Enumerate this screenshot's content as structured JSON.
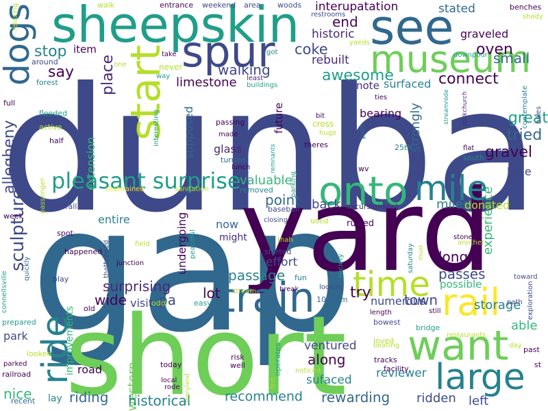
{
  "cloud": {
    "palette": [
      "#440154",
      "#482878",
      "#3e4989",
      "#31688e",
      "#26828e",
      "#1f9e89",
      "#35b779",
      "#6ece58",
      "#b5de2b",
      "#fde725"
    ],
    "words": [
      {
        "text": "dunbar",
        "color": "#3e4989"
      },
      {
        "text": "gap",
        "color": "#31688e"
      },
      {
        "text": "yard",
        "color": "#440154"
      },
      {
        "text": "short",
        "color": "#6ece58"
      },
      {
        "text": "sheepskin",
        "color": "#1f9e89"
      },
      {
        "text": "spur",
        "color": "#3e4989"
      },
      {
        "text": "see",
        "color": "#31688e"
      },
      {
        "text": "museum",
        "color": "#6ece58"
      },
      {
        "text": "start",
        "color": "#b5de2b"
      },
      {
        "text": "dogs",
        "color": "#31688e"
      },
      {
        "text": "onto",
        "color": "#35b779"
      },
      {
        "text": "mile",
        "color": "#26828e"
      },
      {
        "text": "train",
        "color": "#31688e"
      },
      {
        "text": "rail",
        "color": "#fde725"
      },
      {
        "text": "time",
        "color": "#b5de2b"
      },
      {
        "text": "want",
        "color": "#6ece58"
      },
      {
        "text": "large",
        "color": "#26828e"
      },
      {
        "text": "ride",
        "color": "#26828e"
      },
      {
        "text": "pleasant surprise",
        "color": "#1f9e89"
      },
      {
        "text": "allegheny",
        "color": "#3e4989"
      },
      {
        "text": "sculpture",
        "color": "#3e4989"
      },
      {
        "text": "stop",
        "color": "#26828e"
      },
      {
        "text": "item",
        "color": "#440154"
      },
      {
        "text": "say",
        "color": "#440154"
      },
      {
        "text": "place",
        "color": "#482878"
      },
      {
        "text": "walking",
        "color": "#3e4989"
      },
      {
        "text": "limestone",
        "color": "#440154"
      },
      {
        "text": "coke",
        "color": "#3e4989"
      },
      {
        "text": "rebuilt",
        "color": "#482878"
      },
      {
        "text": "awesome",
        "color": "#1f9e89"
      },
      {
        "text": "note",
        "color": "#482878"
      },
      {
        "text": "surfaced",
        "color": "#26828e"
      },
      {
        "text": "connect",
        "color": "#440154"
      },
      {
        "text": "oven",
        "color": "#440154"
      },
      {
        "text": "small",
        "color": "#31688e"
      },
      {
        "text": "end",
        "color": "#440154"
      },
      {
        "text": "historic",
        "color": "#482878"
      },
      {
        "text": "interupatation",
        "color": "#440154"
      },
      {
        "text": "stated",
        "color": "#31688e"
      },
      {
        "text": "graveled",
        "color": "#440154"
      },
      {
        "text": "great",
        "color": "#1f9e89"
      },
      {
        "text": "tried",
        "color": "#31688e"
      },
      {
        "text": "gravel",
        "color": "#440154"
      },
      {
        "text": "strongly",
        "color": "#31688e"
      },
      {
        "text": "experience",
        "color": "#35b779"
      },
      {
        "text": "bearing",
        "color": "#440154"
      },
      {
        "text": "supposed",
        "color": "#31688e"
      },
      {
        "text": "extension",
        "color": "#35b779"
      },
      {
        "text": "glass",
        "color": "#482878"
      },
      {
        "text": "valuable",
        "color": "#35b779"
      },
      {
        "text": "point",
        "color": "#31688e"
      },
      {
        "text": "back",
        "color": "#3e4989"
      },
      {
        "text": "miles",
        "color": "#26828e"
      },
      {
        "text": "donated",
        "color": "#b5de2b"
      },
      {
        "text": "little",
        "color": "#3e4989"
      },
      {
        "text": "future",
        "color": "#440154"
      },
      {
        "text": "entire",
        "color": "#26828e"
      },
      {
        "text": "undergoing",
        "color": "#440154"
      },
      {
        "text": "now",
        "color": "#31688e"
      },
      {
        "text": "might",
        "color": "#482878"
      },
      {
        "text": "effort",
        "color": "#3e4989"
      },
      {
        "text": "passage",
        "color": "#26828e"
      },
      {
        "text": "long",
        "color": "#440154"
      },
      {
        "text": "passes",
        "color": "#3e4989"
      },
      {
        "text": "possible",
        "color": "#35b779"
      },
      {
        "text": "surprising",
        "color": "#482878"
      },
      {
        "text": "visit",
        "color": "#3e4989"
      },
      {
        "text": "pa",
        "color": "#3e4989"
      },
      {
        "text": "wide",
        "color": "#440154"
      },
      {
        "text": "lot",
        "color": "#440154"
      },
      {
        "text": "try",
        "color": "#440154"
      },
      {
        "text": "town",
        "color": "#3e4989"
      },
      {
        "text": "numerous",
        "color": "#3e4989"
      },
      {
        "text": "storage",
        "color": "#26828e"
      },
      {
        "text": "able",
        "color": "#35b779"
      },
      {
        "text": "park",
        "color": "#3e4989"
      },
      {
        "text": "western",
        "color": "#6ece58"
      },
      {
        "text": "road",
        "color": "#440154"
      },
      {
        "text": "along",
        "color": "#440154"
      },
      {
        "text": "ventured",
        "color": "#3e4989"
      },
      {
        "text": "sufaced",
        "color": "#26828e"
      },
      {
        "text": "reviewer",
        "color": "#26828e"
      },
      {
        "text": "ridden",
        "color": "#3e4989"
      },
      {
        "text": "left",
        "color": "#3e4989"
      },
      {
        "text": "nice",
        "color": "#35b779"
      },
      {
        "text": "riding",
        "color": "#31688e"
      },
      {
        "text": "historical",
        "color": "#26828e"
      },
      {
        "text": "recommend",
        "color": "#26828e"
      },
      {
        "text": "rewarding",
        "color": "#31688e"
      },
      {
        "text": "improvements",
        "color": "#35b779"
      },
      {
        "text": "walk",
        "color": "#b5de2b"
      },
      {
        "text": "entrance",
        "color": "#440154"
      },
      {
        "text": "weekend",
        "color": "#3e4989"
      },
      {
        "text": "area",
        "color": "#3e4989"
      },
      {
        "text": "woods",
        "color": "#3e4989"
      },
      {
        "text": "restrooms",
        "color": "#3e4989"
      },
      {
        "text": "benches",
        "color": "#440154"
      },
      {
        "text": "shady",
        "color": "#b5de2b"
      },
      {
        "text": "relaxing",
        "color": "#b5de2b"
      },
      {
        "text": "around",
        "color": "#3e4989"
      },
      {
        "text": "forest",
        "color": "#26828e"
      },
      {
        "text": "one",
        "color": "#b5de2b"
      },
      {
        "text": "take",
        "color": "#440154"
      },
      {
        "text": "way",
        "color": "#1f9e89"
      },
      {
        "text": "got",
        "color": "#26828e"
      },
      {
        "text": "yaeds",
        "color": "#b5de2b"
      },
      {
        "text": "downpour",
        "color": "#1f9e89"
      },
      {
        "text": "least",
        "color": "#482878"
      },
      {
        "text": "buildings",
        "color": "#1f9e89"
      },
      {
        "text": "never",
        "color": "#b5de2b"
      },
      {
        "text": "contemplate",
        "color": "#26828e"
      },
      {
        "text": "bikes",
        "color": "#3e4989"
      },
      {
        "text": "full",
        "color": "#440154"
      },
      {
        "text": "flooded",
        "color": "#1f9e89"
      },
      {
        "text": "active",
        "color": "#b5de2b"
      },
      {
        "text": "half",
        "color": "#440154"
      },
      {
        "text": "interesting",
        "color": "#1f9e89"
      },
      {
        "text": "passing",
        "color": "#440154"
      },
      {
        "text": "made",
        "color": "#440154"
      },
      {
        "text": "turned",
        "color": "#31688e"
      },
      {
        "text": "lunch",
        "color": "#440154"
      },
      {
        "text": "removed",
        "color": "#26828e"
      },
      {
        "text": "maintained",
        "color": "#fde725"
      },
      {
        "text": "overall",
        "color": "#3e4989"
      },
      {
        "text": "sanitation",
        "color": "#b5de2b"
      },
      {
        "text": "bit",
        "color": "#440154"
      },
      {
        "text": "cross",
        "color": "#b5de2b"
      },
      {
        "text": "huge",
        "color": "#b5de2b"
      },
      {
        "text": "theres",
        "color": "#440154"
      },
      {
        "text": "part",
        "color": "#31688e"
      },
      {
        "text": "ties",
        "color": "#440154"
      },
      {
        "text": "streamrode",
        "color": "#1f9e89"
      },
      {
        "text": "parkchurch",
        "color": "#482878"
      },
      {
        "text": "parking",
        "color": "#1f9e89"
      },
      {
        "text": "25th",
        "color": "#26828e"
      },
      {
        "text": "flat",
        "color": "#440154"
      },
      {
        "text": "south",
        "color": "#26828e"
      },
      {
        "text": "remnants",
        "color": "#1f9e89"
      },
      {
        "text": "wv",
        "color": "#440154"
      },
      {
        "text": "baseball",
        "color": "#3e4989"
      },
      {
        "text": "excursionsept",
        "color": "#482878"
      },
      {
        "text": "closing",
        "color": "#3e4989"
      },
      {
        "text": "used",
        "color": "#b5de2b"
      },
      {
        "text": "rutted",
        "color": "#440154"
      },
      {
        "text": "passenger",
        "color": "#b5de2b"
      },
      {
        "text": "week",
        "color": "#440154"
      },
      {
        "text": "spot",
        "color": "#440154"
      },
      {
        "text": "connellsville",
        "color": "#1f9e89"
      },
      {
        "text": "quickly",
        "color": "#31688e"
      },
      {
        "text": "thattopped",
        "color": "#3e4989"
      },
      {
        "text": "junction",
        "color": "#440154"
      },
      {
        "text": "happened",
        "color": "#440154"
      },
      {
        "text": "field",
        "color": "#b5de2b"
      },
      {
        "text": "peaceful",
        "color": "#1f9e89"
      },
      {
        "text": "thah",
        "color": "#b5de2b"
      },
      {
        "text": "started",
        "color": "#3e4989"
      },
      {
        "text": "society",
        "color": "#1f9e89"
      },
      {
        "text": "must",
        "color": "#b5de2b"
      },
      {
        "text": "stone",
        "color": "#440154"
      },
      {
        "text": "another",
        "color": "#b5de2b"
      },
      {
        "text": "saturday",
        "color": "#26828e"
      },
      {
        "text": "toward",
        "color": "#3e4989"
      },
      {
        "text": "play",
        "color": "#3e4989"
      },
      {
        "text": "fun",
        "color": "#26828e"
      },
      {
        "text": "break",
        "color": "#440154"
      },
      {
        "text": "stream",
        "color": "#b5de2b"
      },
      {
        "text": "looking",
        "color": "#3e4989"
      },
      {
        "text": "1030am",
        "color": "#31688e"
      },
      {
        "text": "path",
        "color": "#3e4989"
      },
      {
        "text": "exploration",
        "color": "#3e4989"
      },
      {
        "text": "old",
        "color": "#440154"
      },
      {
        "text": "odor",
        "color": "#b5de2b"
      },
      {
        "text": "easy",
        "color": "#1f9e89"
      },
      {
        "text": "still",
        "color": "#440154"
      },
      {
        "text": "length",
        "color": "#440154"
      },
      {
        "text": "bowest",
        "color": "#3e4989"
      },
      {
        "text": "bridge",
        "color": "#1f9e89"
      },
      {
        "text": "prepared",
        "color": "#1f9e89"
      },
      {
        "text": "loved",
        "color": "#b5de2b"
      },
      {
        "text": "beating",
        "color": "#b5de2b"
      },
      {
        "text": "restaurants",
        "color": "#b5de2b"
      },
      {
        "text": "day",
        "color": "#b5de2b"
      },
      {
        "text": "past",
        "color": "#440154"
      },
      {
        "text": "looked",
        "color": "#b5de2b"
      },
      {
        "text": "today",
        "color": "#440154"
      },
      {
        "text": "risk",
        "color": "#440154"
      },
      {
        "text": "well",
        "color": "#440154"
      },
      {
        "text": "operates",
        "color": "#1f9e89"
      },
      {
        "text": "tracks",
        "color": "#440154"
      },
      {
        "text": "facility",
        "color": "#440154"
      },
      {
        "text": "parked",
        "color": "#440154"
      },
      {
        "text": "railroad",
        "color": "#440154"
      },
      {
        "text": "maryland",
        "color": "#b5de2b"
      },
      {
        "text": "first",
        "color": "#b5de2b"
      },
      {
        "text": "noticed",
        "color": "#b5de2b"
      },
      {
        "text": "local",
        "color": "#440154"
      },
      {
        "text": "rode",
        "color": "#440154"
      },
      {
        "text": "st",
        "color": "#440154"
      },
      {
        "text": "recent",
        "color": "#31688e"
      },
      {
        "text": "lay",
        "color": "#26828e"
      }
    ]
  }
}
